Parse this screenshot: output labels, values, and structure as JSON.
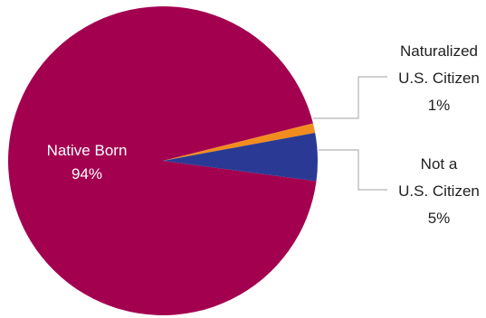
{
  "chart_data": {
    "type": "pie",
    "slices": [
      {
        "name_lines": [
          "Native Born"
        ],
        "value_label": "94%",
        "value": 94,
        "color": "#a3004f"
      },
      {
        "name_lines": [
          "Naturalized",
          "U.S. Citizen"
        ],
        "value_label": "1%",
        "value": 1,
        "color": "#f28c1f"
      },
      {
        "name_lines": [
          "Not a",
          "U.S. Citizen"
        ],
        "value_label": "5%",
        "value": 5,
        "color": "#2a3a94"
      }
    ]
  }
}
